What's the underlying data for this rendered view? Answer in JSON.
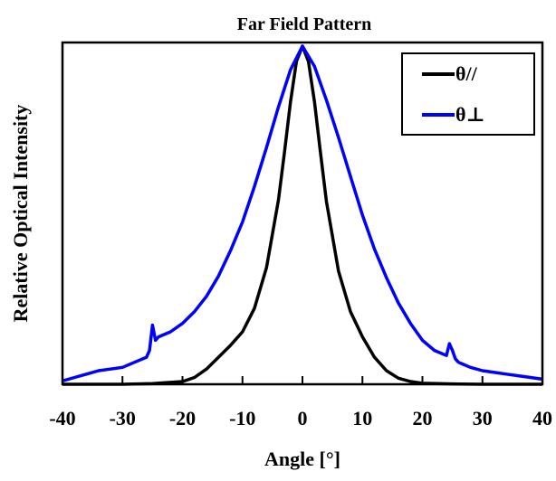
{
  "chart_data": {
    "type": "line",
    "title": "Far Field Pattern",
    "xlabel": "Angle [°]",
    "ylabel": "Relative Optical Intensity",
    "xlim": [
      -40,
      40
    ],
    "ylim": [
      0,
      1.0
    ],
    "xticks": [
      -40,
      -30,
      -20,
      -10,
      0,
      10,
      20,
      30,
      40
    ],
    "yticks_shown": false,
    "grid": false,
    "legend_position": "top-right",
    "series": [
      {
        "name": "θ//",
        "color": "#000000",
        "x": [
          -40,
          -30,
          -25,
          -20,
          -18,
          -16,
          -14,
          -12,
          -10,
          -8,
          -6,
          -4,
          -3,
          -2,
          -1,
          0,
          1,
          2,
          3,
          4,
          6,
          8,
          10,
          12,
          14,
          16,
          18,
          20,
          25,
          30,
          40
        ],
        "y": [
          0.0,
          0.0,
          0.002,
          0.008,
          0.02,
          0.045,
          0.08,
          0.115,
          0.155,
          0.225,
          0.345,
          0.545,
          0.685,
          0.835,
          0.955,
          1.0,
          0.955,
          0.835,
          0.685,
          0.54,
          0.335,
          0.215,
          0.14,
          0.08,
          0.04,
          0.018,
          0.008,
          0.003,
          0.001,
          0.0,
          0.0
        ]
      },
      {
        "name": "θ⊥",
        "color": "#0000ff",
        "x": [
          -40,
          -38,
          -36,
          -34,
          -32,
          -30,
          -28,
          -26,
          -25.5,
          -25,
          -24.5,
          -24,
          -22,
          -20,
          -18,
          -16,
          -14,
          -12,
          -10,
          -8,
          -6,
          -4,
          -2,
          0,
          2,
          4,
          6,
          8,
          10,
          12,
          14,
          16,
          18,
          20,
          22,
          24,
          24.5,
          25,
          25.5,
          26,
          28,
          30,
          32,
          34,
          36,
          38,
          40
        ],
        "y": [
          0.01,
          0.02,
          0.03,
          0.04,
          0.045,
          0.05,
          0.065,
          0.08,
          0.1,
          0.175,
          0.13,
          0.14,
          0.155,
          0.18,
          0.215,
          0.26,
          0.32,
          0.395,
          0.48,
          0.585,
          0.7,
          0.82,
          0.93,
          1.0,
          0.94,
          0.84,
          0.73,
          0.615,
          0.5,
          0.4,
          0.315,
          0.24,
          0.18,
          0.13,
          0.1,
          0.085,
          0.12,
          0.1,
          0.075,
          0.065,
          0.05,
          0.04,
          0.035,
          0.03,
          0.025,
          0.02,
          0.015
        ]
      }
    ]
  }
}
